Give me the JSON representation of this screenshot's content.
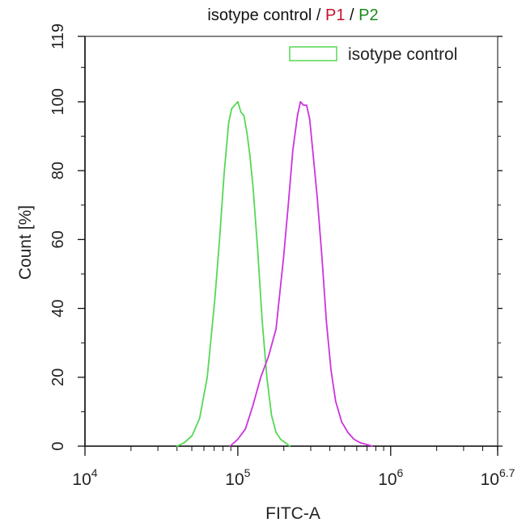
{
  "chart_data": {
    "type": "line",
    "title_parts": [
      {
        "text": "isotype control",
        "color": "#111111"
      },
      {
        "text": " / ",
        "color": "#111111"
      },
      {
        "text": "P1",
        "color": "#c8102e"
      },
      {
        "text": " / ",
        "color": "#111111"
      },
      {
        "text": "P2",
        "color": "#1a8a1a"
      }
    ],
    "xlabel": "FITC-A",
    "ylabel": "Count  [%]",
    "x_scale": "log10",
    "xlim": [
      10000,
      5011872
    ],
    "ylim": [
      0,
      119
    ],
    "y_ticks": [
      0,
      20,
      40,
      60,
      80,
      100,
      119
    ],
    "x_ticks": [
      {
        "value": 10000,
        "base": "10",
        "exp": "4"
      },
      {
        "value": 100000,
        "base": "10",
        "exp": "5"
      },
      {
        "value": 1000000,
        "base": "10",
        "exp": "6"
      },
      {
        "value": 5011872,
        "base": "10",
        "exp": "6.7"
      }
    ],
    "legend": {
      "position": "top-right",
      "entries": [
        {
          "name": "isotype control",
          "color": "#55d855"
        }
      ]
    },
    "series": [
      {
        "name": "isotype control",
        "color": "#55d855",
        "x": [
          40000,
          44700,
          50100,
          56200,
          63100,
          70800,
          75900,
          81300,
          87100,
          91200,
          95500,
          100000,
          104700,
          109600,
          114800,
          120200,
          125900,
          134900,
          144500,
          154900,
          166000,
          177800,
          190500,
          204200,
          218800
        ],
        "y": [
          0,
          1,
          3,
          8,
          20,
          43,
          60,
          79,
          94,
          98,
          99,
          100,
          97,
          96,
          91,
          84,
          75,
          57,
          36,
          20,
          9,
          4,
          2,
          1,
          0
        ]
      },
      {
        "name": "",
        "color": "#cc33dd",
        "x": [
          89100,
          100000,
          112200,
          125900,
          141300,
          158500,
          177800,
          199500,
          213800,
          229100,
          245500,
          257000,
          269200,
          281800,
          295100,
          309000,
          331100,
          354800,
          380200,
          407400,
          436500,
          478600,
          524800,
          575400,
          631000,
          691800,
          758600
        ],
        "y": [
          0,
          2,
          5,
          12,
          20,
          26,
          34,
          55,
          70,
          86,
          96,
          100,
          99,
          99,
          95,
          86,
          72,
          55,
          36,
          22,
          13,
          7,
          4,
          2,
          1,
          0.5,
          0
        ]
      }
    ]
  }
}
